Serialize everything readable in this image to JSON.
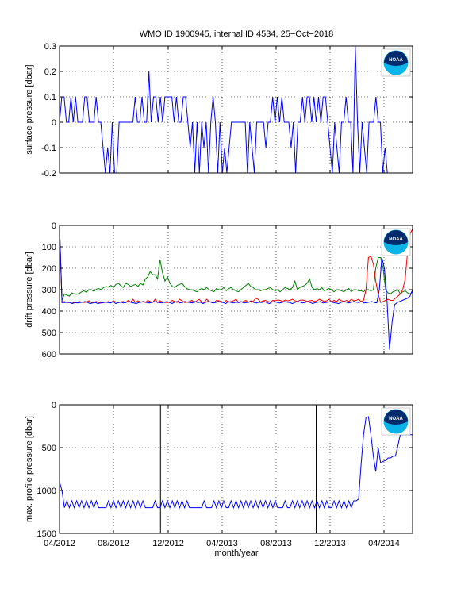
{
  "title": "WMO ID 1900945, internal ID 4534, 25−Oct−2018",
  "xlabel": "month/year",
  "logo_text": "NOAA",
  "colors": {
    "blue": "#0000ff",
    "green": "#007f00",
    "red": "#ff0000",
    "black": "#000000",
    "grid": "#000000",
    "logo_navy": "#002a6e",
    "logo_cyan": "#0ab3e8"
  },
  "x_ticks": [
    "04/2012",
    "08/2012",
    "12/2012",
    "04/2013",
    "08/2013",
    "12/2013",
    "04/2014"
  ],
  "chart_data": [
    {
      "type": "line",
      "ylabel": "surface pressure [dbar]",
      "ylim": [
        -0.2,
        0.3
      ],
      "yticks": [
        "0.3",
        "0.2",
        "0.1",
        "0",
        "-0.1",
        "-0.2"
      ],
      "ytick_values": [
        0.3,
        0.2,
        0.1,
        0,
        -0.1,
        -0.2
      ],
      "y_reversed": false,
      "grid": true,
      "series": [
        {
          "color": "blue",
          "values": [
            0,
            0.1,
            0.1,
            0,
            0,
            0.1,
            0,
            0.1,
            0,
            0,
            0,
            0.1,
            0.1,
            0,
            0,
            0,
            0.1,
            0,
            0,
            -0.1,
            -0.2,
            -0.1,
            -0.2,
            0,
            -0.2,
            -0.2,
            0,
            0,
            0,
            0,
            0,
            0,
            0,
            0.1,
            0,
            0,
            0.1,
            0,
            0,
            0.2,
            0,
            0.1,
            0.1,
            0,
            0.1,
            0,
            0.1,
            0.1,
            0.1,
            0.1,
            0,
            0.1,
            0,
            0,
            0.1,
            0.1,
            0,
            -0.1,
            0,
            -0.2,
            0,
            -0.2,
            0,
            -0.1,
            0,
            -0.2,
            0,
            0.1,
            0,
            -0.2,
            0,
            -0.2,
            -0.1,
            -0.2,
            -0.1,
            0,
            0,
            0,
            0,
            0,
            0,
            0,
            -0.2,
            0,
            -0.1,
            -0.2,
            0,
            0,
            0,
            0,
            -0.1,
            0,
            0,
            0.1,
            0,
            0.1,
            0,
            0.1,
            0,
            0,
            0,
            -0.1,
            0,
            -0.2,
            0,
            0,
            0.1,
            0,
            0.1,
            0.1,
            0,
            0.1,
            0,
            0.1,
            0,
            0.1,
            0.1,
            0,
            -0.1,
            -0.2,
            0,
            -0.1,
            -0.2,
            0,
            0,
            0.1,
            0,
            0,
            -0.2,
            0.3,
            0,
            -0.2,
            0,
            -0.1,
            -0.2,
            0,
            0,
            0,
            0.1,
            0,
            0,
            -0.2,
            -0.1,
            -0.2,
            -0.2,
            -0.2,
            -0.2,
            -0.2,
            -0.2,
            -0.2,
            -0.2,
            -0.2,
            -0.2,
            -0.2,
            -0.2
          ]
        }
      ]
    },
    {
      "type": "line",
      "ylabel": "drift pressure [dbar]",
      "ylim": [
        0,
        600
      ],
      "yticks": [
        "0",
        "100",
        "200",
        "300",
        "400",
        "500",
        "600"
      ],
      "ytick_values": [
        0,
        100,
        200,
        300,
        400,
        500,
        600
      ],
      "y_reversed": true,
      "grid": true,
      "series": [
        {
          "color": "green",
          "values": [
            10,
            350,
            320,
            325,
            330,
            315,
            320,
            322,
            318,
            310,
            305,
            312,
            300,
            300,
            308,
            298,
            295,
            300,
            290,
            285,
            288,
            280,
            290,
            275,
            270,
            282,
            290,
            270,
            275,
            285,
            280,
            275,
            285,
            270,
            278,
            250,
            240,
            215,
            230,
            230,
            250,
            160,
            220,
            260,
            240,
            270,
            285,
            290,
            280,
            275,
            270,
            285,
            295,
            300,
            300,
            305,
            310,
            300,
            295,
            300,
            290,
            300,
            305,
            310,
            295,
            300,
            300,
            290,
            305,
            295,
            290,
            300,
            305,
            310,
            300,
            290,
            280,
            270,
            285,
            290,
            300,
            300,
            305,
            300,
            300,
            295,
            290,
            300,
            305,
            300,
            310,
            300,
            290,
            295,
            300,
            290,
            260,
            300,
            290,
            285,
            280,
            270,
            250,
            290,
            300,
            295,
            300,
            290,
            305,
            300,
            295,
            300,
            310,
            300,
            300,
            305,
            310,
            300,
            295,
            310,
            300,
            300,
            305,
            305,
            310,
            300,
            300,
            305,
            300,
            200,
            150,
            150,
            200,
            300,
            315,
            320,
            310,
            305,
            300,
            320,
            310,
            305,
            315,
            320,
            310
          ]
        },
        {
          "color": "red",
          "values": [
            0,
            360,
            355,
            360,
            360,
            358,
            362,
            360,
            355,
            358,
            360,
            357,
            352,
            360,
            358,
            355,
            360,
            362,
            360,
            358,
            355,
            360,
            352,
            358,
            360,
            357,
            355,
            360,
            350,
            358,
            345,
            360,
            352,
            358,
            355,
            360,
            350,
            355,
            360,
            345,
            360,
            352,
            357,
            360,
            360,
            358,
            350,
            355,
            360,
            345,
            352,
            360,
            358,
            355,
            350,
            360,
            352,
            345,
            358,
            360,
            345,
            355,
            358,
            360,
            350,
            352,
            355,
            360,
            350,
            358,
            355,
            352,
            345,
            360,
            358,
            355,
            350,
            360,
            352,
            355,
            340,
            345,
            358,
            352,
            350,
            355,
            358,
            350,
            352,
            348,
            350,
            355,
            348,
            352,
            350,
            345,
            352,
            355,
            350,
            348,
            350,
            355,
            352,
            350,
            355,
            352,
            345,
            350,
            355,
            352,
            345,
            358,
            350,
            355,
            345,
            352,
            355,
            350,
            355,
            345,
            352,
            350,
            345,
            355,
            350,
            300,
            150,
            145,
            180,
            260,
            320,
            360,
            355,
            350,
            345,
            350,
            350,
            340,
            330,
            320,
            300,
            250,
            120,
            40,
            15
          ]
        },
        {
          "color": "blue",
          "values": [
            0,
            360,
            360,
            358,
            360,
            365,
            360,
            362,
            360,
            358,
            355,
            360,
            365,
            362,
            360,
            365,
            362,
            360,
            358,
            360,
            362,
            355,
            365,
            360,
            358,
            362,
            360,
            355,
            360,
            362,
            365,
            360,
            358,
            355,
            360,
            362,
            360,
            355,
            358,
            360,
            362,
            358,
            355,
            360,
            365,
            358,
            355,
            362,
            360,
            355,
            358,
            360,
            362,
            355,
            360,
            358,
            365,
            360,
            355,
            358,
            362,
            360,
            355,
            358,
            360,
            365,
            355,
            360,
            362,
            358,
            360,
            355,
            362,
            360,
            358,
            355,
            360,
            362,
            358,
            360,
            355,
            360,
            365,
            358,
            355,
            360,
            362,
            360,
            355,
            358,
            360,
            365,
            360,
            355,
            358,
            362,
            360,
            355,
            360,
            365,
            360,
            358,
            355,
            362,
            360,
            358,
            355,
            360,
            362,
            365,
            360,
            355,
            358,
            362,
            360,
            355,
            358,
            360,
            355,
            362,
            360,
            358,
            355,
            360,
            362,
            300,
            150,
            200,
            350,
            580,
            450,
            370,
            360,
            355,
            350,
            345,
            340,
            330,
            300
          ]
        }
      ]
    },
    {
      "type": "line",
      "ylabel": "max. profile pressure [dbar]",
      "ylim": [
        0,
        1500
      ],
      "yticks": [
        "0",
        "500",
        "1000",
        "1500"
      ],
      "ytick_values": [
        0,
        500,
        1000,
        1500
      ],
      "y_reversed": true,
      "grid": true,
      "vlines_frac": [
        0.286,
        0.727
      ],
      "series": [
        {
          "color": "blue",
          "values": [
            900,
            1000,
            1200,
            1120,
            1200,
            1120,
            1200,
            1120,
            1200,
            1120,
            1200,
            1120,
            1200,
            1120,
            1200,
            1120,
            1200,
            1200,
            1200,
            1200,
            1120,
            1200,
            1120,
            1200,
            1120,
            1200,
            1120,
            1200,
            1120,
            1200,
            1120,
            1200,
            1120,
            1200,
            1120,
            1200,
            1200,
            1200,
            1200,
            1120,
            1200,
            1200,
            1120,
            1200,
            1120,
            1200,
            1120,
            1200,
            1120,
            1200,
            1120,
            1200,
            1120,
            1200,
            1200,
            1200,
            1200,
            1200,
            1200,
            1120,
            1200,
            1200,
            1200,
            1120,
            1200,
            1120,
            1200,
            1120,
            1200,
            1200,
            1120,
            1200,
            1120,
            1200,
            1120,
            1200,
            1120,
            1200,
            1120,
            1200,
            1120,
            1200,
            1120,
            1200,
            1120,
            1200,
            1120,
            1200,
            1120,
            1200,
            1200,
            1200,
            1120,
            1200,
            1200,
            1120,
            1200,
            1120,
            1200,
            1120,
            1200,
            1120,
            1200,
            1120,
            1200,
            1120,
            1200,
            1120,
            1200,
            1120,
            1200,
            1200,
            1120,
            1200,
            1120,
            1200,
            1120,
            1200,
            1120,
            1200,
            1120,
            1120,
            1100,
            700,
            350,
            150,
            140,
            350,
            600,
            780,
            500,
            680,
            660,
            650,
            620,
            620,
            600,
            600,
            480,
            350,
            350,
            350,
            350,
            350,
            350
          ]
        }
      ]
    }
  ]
}
